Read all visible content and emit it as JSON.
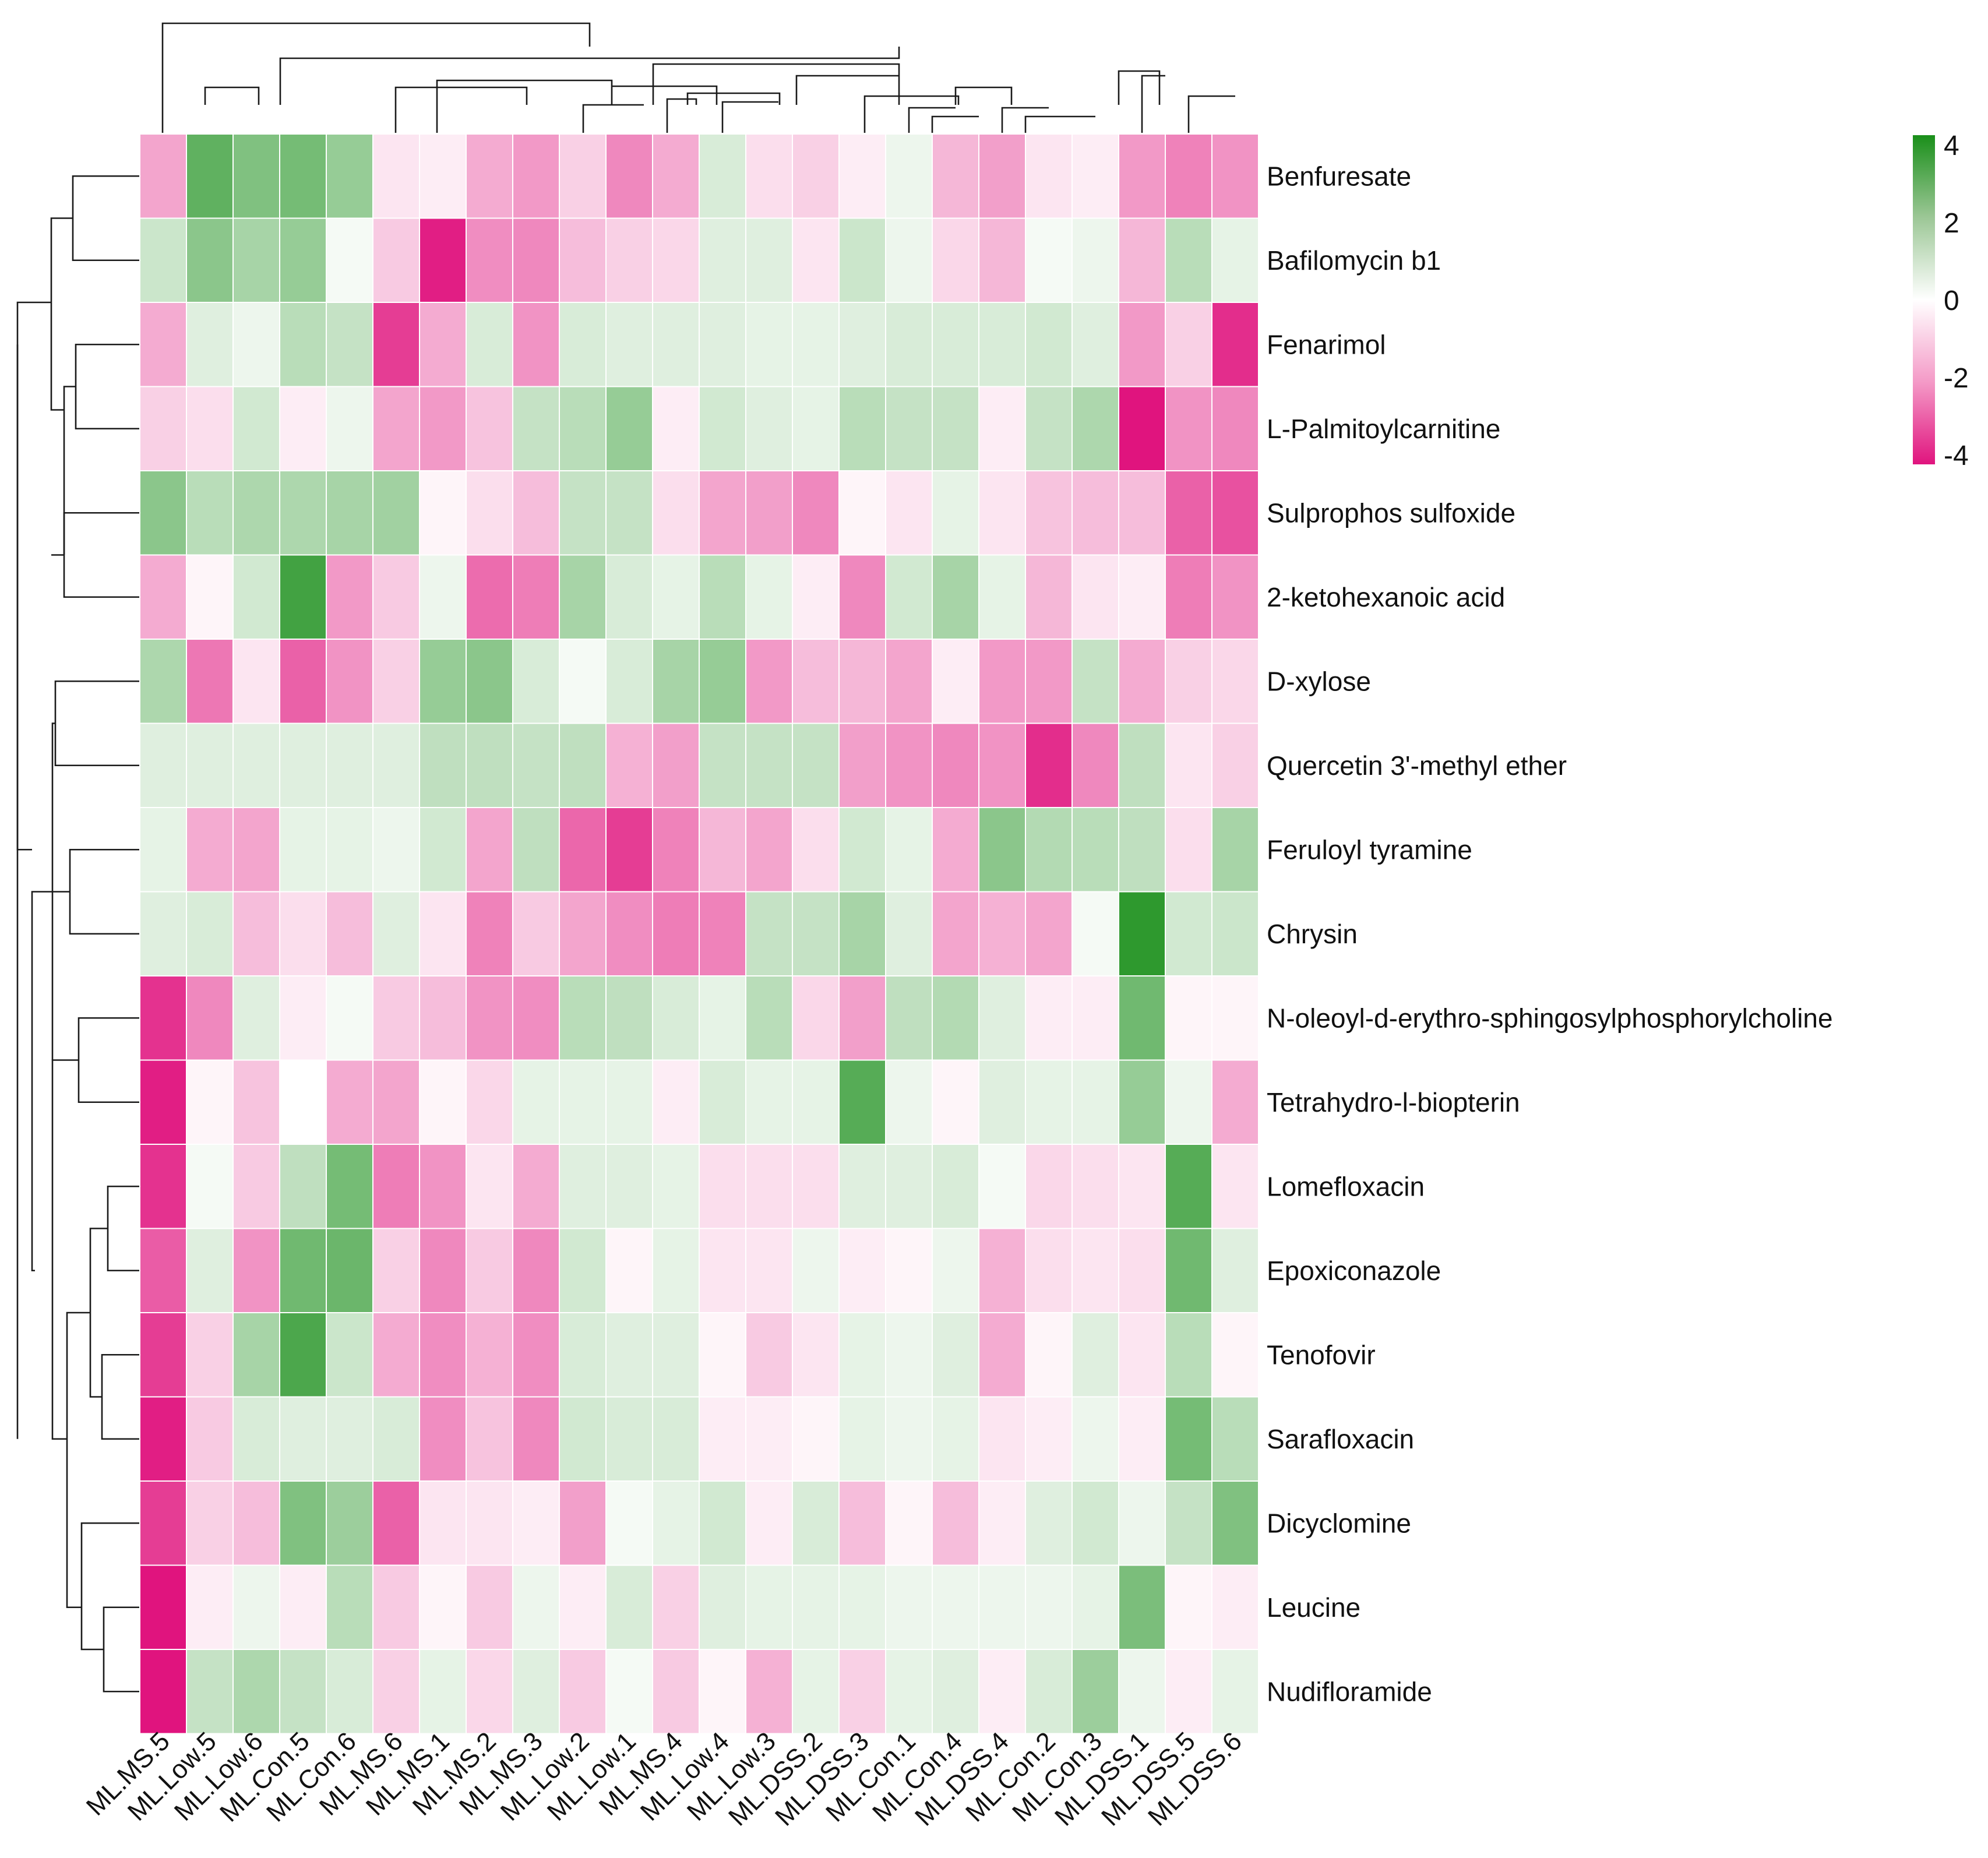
{
  "chart_data": {
    "type": "heatmap",
    "columns": [
      "ML.MS.5",
      "ML.Low.5",
      "ML.Low.6",
      "ML.Con.5",
      "ML.Con.6",
      "ML.MS.6",
      "ML.MS.1",
      "ML.MS.2",
      "ML.MS.3",
      "ML.Low.2",
      "ML.Low.1",
      "ML.MS.4",
      "ML.Low.4",
      "ML.Low.3",
      "ML.DSS.2",
      "ML.DSS.3",
      "ML.Con.1",
      "ML.Con.4",
      "ML.DSS.4",
      "ML.Con.2",
      "ML.Con.3",
      "ML.DSS.1",
      "ML.DSS.5",
      "ML.DSS.6"
    ],
    "rows": [
      "Benfuresate",
      "Bafilomycin b1",
      "Fenarimol",
      "L-Palmitoylcarnitine",
      "Sulprophos sulfoxide",
      "2-ketohexanoic acid",
      "D-xylose",
      "Quercetin 3'-methyl ether",
      "Feruloyl tyramine",
      "Chrysin",
      "N-oleoyl-d-erythro-sphingosylphosphorylcholine",
      "Tetrahydro-l-biopterin",
      "Lomefloxacin",
      "Epoxiconazole",
      "Tenofovir",
      "Sarafloxacin",
      "Dicyclomine",
      "Leucine",
      "Nudifloramide"
    ],
    "values": [
      [
        -1.3,
        2.6,
        2.0,
        2.2,
        1.6,
        -0.3,
        -0.2,
        -1.2,
        -1.5,
        -0.6,
        -1.8,
        -1.2,
        0.5,
        -0.4,
        -0.6,
        -0.2,
        0.2,
        -1.0,
        -1.4,
        -0.3,
        -0.2,
        -1.5,
        -1.9,
        -1.6
      ],
      [
        0.7,
        1.8,
        1.3,
        1.6,
        0.1,
        -0.7,
        -3.8,
        -1.7,
        -1.8,
        -0.9,
        -0.6,
        -0.5,
        0.4,
        0.4,
        -0.3,
        0.7,
        0.2,
        -0.5,
        -1.0,
        0.1,
        0.2,
        -1.0,
        1.0,
        0.3
      ],
      [
        -1.2,
        0.4,
        0.2,
        1.0,
        0.8,
        -3.2,
        -1.2,
        0.5,
        -1.6,
        0.5,
        0.4,
        0.4,
        0.4,
        0.3,
        0.3,
        0.4,
        0.5,
        0.5,
        0.5,
        0.6,
        0.4,
        -1.5,
        -0.6,
        -3.5
      ],
      [
        -0.6,
        -0.4,
        0.6,
        -0.2,
        0.2,
        -1.3,
        -1.5,
        -0.8,
        0.8,
        1.0,
        1.6,
        -0.2,
        0.6,
        0.4,
        0.3,
        1.0,
        0.8,
        0.8,
        -0.2,
        0.8,
        1.2,
        -4.0,
        -1.6,
        -1.8
      ],
      [
        1.8,
        1.0,
        1.2,
        1.2,
        1.3,
        1.4,
        -0.1,
        -0.4,
        -0.9,
        0.8,
        0.8,
        -0.4,
        -1.3,
        -1.4,
        -1.8,
        -0.1,
        -0.3,
        0.3,
        -0.3,
        -0.8,
        -0.9,
        -0.9,
        -2.5,
        -2.8
      ],
      [
        -1.2,
        -0.1,
        0.6,
        3.2,
        -1.5,
        -0.7,
        0.2,
        -2.3,
        -2.0,
        1.3,
        0.5,
        0.3,
        1.0,
        0.3,
        -0.2,
        -1.8,
        0.6,
        1.3,
        0.3,
        -1.0,
        -0.3,
        -0.2,
        -2.0,
        -1.6
      ],
      [
        1.2,
        -2.1,
        -0.3,
        -2.5,
        -1.6,
        -0.6,
        1.6,
        1.8,
        0.5,
        0.1,
        0.5,
        1.3,
        1.6,
        -1.5,
        -0.9,
        -1.0,
        -1.3,
        -0.2,
        -1.5,
        -1.5,
        0.8,
        -1.2,
        -0.6,
        -0.5
      ],
      [
        0.4,
        0.4,
        0.4,
        0.4,
        0.4,
        0.4,
        0.9,
        0.9,
        0.8,
        0.9,
        -1.1,
        -1.4,
        0.8,
        0.8,
        0.8,
        -1.4,
        -1.6,
        -1.8,
        -1.6,
        -3.5,
        -1.8,
        0.9,
        -0.3,
        -0.6
      ],
      [
        0.3,
        -1.2,
        -1.3,
        0.3,
        0.3,
        0.2,
        0.6,
        -1.3,
        0.9,
        -2.4,
        -3.2,
        -1.9,
        -1.0,
        -1.3,
        -0.4,
        0.6,
        0.3,
        -1.2,
        1.8,
        1.1,
        1.0,
        0.9,
        -0.4,
        1.3
      ],
      [
        0.4,
        0.5,
        -0.9,
        -0.4,
        -0.9,
        0.4,
        -0.3,
        -1.9,
        -0.7,
        -1.3,
        -1.7,
        -2.0,
        -1.9,
        0.8,
        0.8,
        1.3,
        0.4,
        -1.3,
        -1.1,
        -1.3,
        0.1,
        3.6,
        0.6,
        0.7
      ],
      [
        -3.4,
        -1.8,
        0.4,
        -0.2,
        0.1,
        -0.7,
        -0.9,
        -1.6,
        -1.7,
        1.0,
        0.9,
        0.5,
        0.3,
        1.0,
        -0.5,
        -1.4,
        0.9,
        1.1,
        0.4,
        -0.2,
        -0.2,
        2.3,
        -0.1,
        -0.1
      ],
      [
        -3.8,
        -0.1,
        -0.8,
        0.0,
        -1.2,
        -1.3,
        -0.1,
        -0.5,
        0.3,
        0.3,
        0.3,
        -0.2,
        0.5,
        0.3,
        0.3,
        2.8,
        0.2,
        -0.1,
        0.4,
        0.3,
        0.3,
        1.6,
        0.2,
        -1.2
      ],
      [
        -3.4,
        0.1,
        -0.7,
        0.9,
        2.2,
        -2.0,
        -1.6,
        -0.3,
        -1.2,
        0.4,
        0.4,
        0.3,
        -0.4,
        -0.4,
        -0.4,
        0.4,
        0.4,
        0.5,
        0.1,
        -0.5,
        -0.4,
        -0.3,
        2.8,
        -0.3
      ],
      [
        -2.6,
        0.4,
        -1.6,
        2.3,
        2.4,
        -0.6,
        -1.8,
        -0.7,
        -1.8,
        0.6,
        -0.1,
        0.3,
        -0.3,
        -0.3,
        0.2,
        -0.2,
        -0.1,
        0.2,
        -1.1,
        -0.4,
        -0.3,
        -0.4,
        2.3,
        0.4
      ],
      [
        -3.2,
        -0.6,
        1.3,
        3.0,
        0.7,
        -1.2,
        -1.7,
        -1.1,
        -1.7,
        0.5,
        0.4,
        0.4,
        -0.1,
        -0.7,
        -0.3,
        0.3,
        0.2,
        0.4,
        -1.2,
        -0.1,
        0.4,
        -0.3,
        1.0,
        -0.1
      ],
      [
        -3.8,
        -0.7,
        0.5,
        0.4,
        0.4,
        0.5,
        -1.7,
        -0.8,
        -1.8,
        0.6,
        0.5,
        0.5,
        -0.2,
        -0.2,
        -0.1,
        0.3,
        0.2,
        0.3,
        -0.3,
        -0.2,
        0.2,
        -0.2,
        2.2,
        1.0
      ],
      [
        -3.2,
        -0.6,
        -0.9,
        2.0,
        1.5,
        -2.5,
        -0.3,
        -0.3,
        -0.2,
        -1.4,
        0.1,
        0.3,
        0.6,
        -0.2,
        0.5,
        -0.9,
        -0.1,
        -0.9,
        -0.2,
        0.4,
        0.6,
        0.2,
        0.8,
        2.0
      ],
      [
        -4.0,
        -0.2,
        0.2,
        -0.2,
        1.0,
        -0.7,
        -0.1,
        -0.7,
        0.2,
        -0.2,
        0.5,
        -0.6,
        0.4,
        0.3,
        0.3,
        0.3,
        0.2,
        0.2,
        0.2,
        0.2,
        0.3,
        2.1,
        -0.1,
        -0.2
      ],
      [
        -4.0,
        0.8,
        1.2,
        0.8,
        0.5,
        -0.6,
        0.3,
        -0.5,
        0.4,
        -0.7,
        0.1,
        -0.7,
        -0.1,
        -1.1,
        0.3,
        -0.6,
        0.3,
        0.4,
        -0.2,
        0.5,
        1.5,
        0.2,
        -0.2,
        0.3
      ]
    ],
    "color_scale": {
      "min": -4,
      "max": 4,
      "ticks": [
        "4",
        "2",
        "0",
        "-2",
        "-4"
      ],
      "high_color": "#1a8f1a",
      "mid_color": "#ffffff",
      "low_color": "#e0147e"
    },
    "row_dendrogram": true,
    "column_dendrogram": true,
    "grid": true,
    "legend_placement": "top-right"
  }
}
